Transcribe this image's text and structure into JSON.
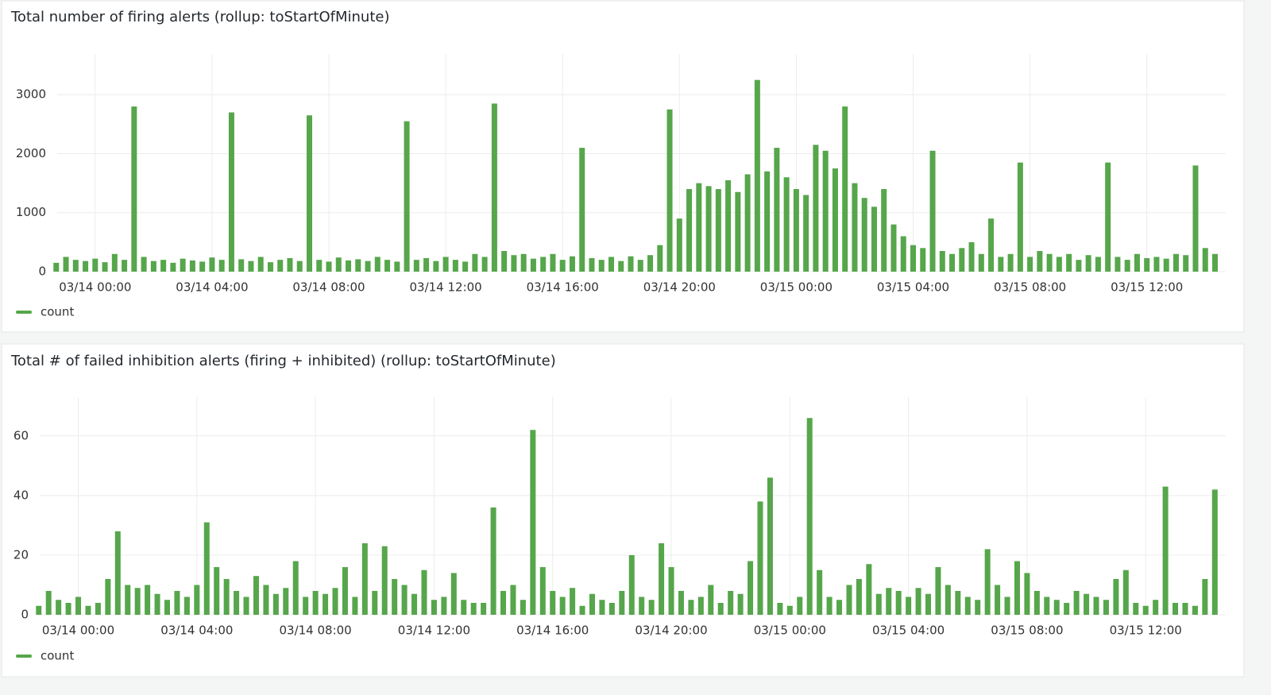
{
  "chart_data": [
    {
      "type": "bar",
      "title": "Total number of firing alerts (rollup: toStartOfMinute)",
      "x": [
        "03/13 22:40",
        "03/13 23:00",
        "03/13 23:20",
        "03/13 23:40",
        "03/14 00:00",
        "03/14 00:20",
        "03/14 00:40",
        "03/14 01:00",
        "03/14 01:20",
        "03/14 01:40",
        "03/14 02:00",
        "03/14 02:20",
        "03/14 02:40",
        "03/14 03:00",
        "03/14 03:20",
        "03/14 03:40",
        "03/14 04:00",
        "03/14 04:20",
        "03/14 04:40",
        "03/14 05:00",
        "03/14 05:20",
        "03/14 05:40",
        "03/14 06:00",
        "03/14 06:20",
        "03/14 06:40",
        "03/14 07:00",
        "03/14 07:20",
        "03/14 07:40",
        "03/14 08:00",
        "03/14 08:20",
        "03/14 08:40",
        "03/14 09:00",
        "03/14 09:20",
        "03/14 09:40",
        "03/14 10:00",
        "03/14 10:20",
        "03/14 10:40",
        "03/14 11:00",
        "03/14 11:20",
        "03/14 11:40",
        "03/14 12:00",
        "03/14 12:20",
        "03/14 12:40",
        "03/14 13:00",
        "03/14 13:20",
        "03/14 13:40",
        "03/14 14:00",
        "03/14 14:20",
        "03/14 14:40",
        "03/14 15:00",
        "03/14 15:20",
        "03/14 15:40",
        "03/14 16:00",
        "03/14 16:20",
        "03/14 16:40",
        "03/14 17:00",
        "03/14 17:20",
        "03/14 17:40",
        "03/14 18:00",
        "03/14 18:20",
        "03/14 18:40",
        "03/14 19:00",
        "03/14 19:20",
        "03/14 19:40",
        "03/14 20:00",
        "03/14 20:20",
        "03/14 20:40",
        "03/14 21:00",
        "03/14 21:20",
        "03/14 21:40",
        "03/14 22:00",
        "03/14 22:20",
        "03/14 22:40",
        "03/14 23:00",
        "03/14 23:20",
        "03/14 23:40",
        "03/15 00:00",
        "03/15 00:20",
        "03/15 00:40",
        "03/15 01:00",
        "03/15 01:20",
        "03/15 01:40",
        "03/15 02:00",
        "03/15 02:20",
        "03/15 02:40",
        "03/15 03:00",
        "03/15 03:20",
        "03/15 03:40",
        "03/15 04:00",
        "03/15 04:20",
        "03/15 04:40",
        "03/15 05:00",
        "03/15 05:20",
        "03/15 05:40",
        "03/15 06:00",
        "03/15 06:20",
        "03/15 06:40",
        "03/15 07:00",
        "03/15 07:20",
        "03/15 07:40",
        "03/15 08:00",
        "03/15 08:20",
        "03/15 08:40",
        "03/15 09:00",
        "03/15 09:20",
        "03/15 09:40",
        "03/15 10:00",
        "03/15 10:20",
        "03/15 10:40",
        "03/15 11:00",
        "03/15 11:20",
        "03/15 11:40",
        "03/15 12:00",
        "03/15 12:20",
        "03/15 12:40",
        "03/15 13:00",
        "03/15 13:20",
        "03/15 13:40",
        "03/15 14:00",
        "03/15 14:20"
      ],
      "series": [
        {
          "name": "count",
          "color": "#56a64b",
          "values": [
            150,
            250,
            200,
            180,
            220,
            160,
            300,
            200,
            2800,
            250,
            180,
            200,
            150,
            220,
            190,
            170,
            240,
            200,
            2700,
            210,
            180,
            250,
            160,
            200,
            230,
            180,
            2650,
            200,
            170,
            240,
            190,
            210,
            180,
            250,
            200,
            170,
            2550,
            200,
            230,
            180,
            250,
            200,
            170,
            300,
            250,
            2850,
            350,
            280,
            300,
            220,
            250,
            300,
            200,
            260,
            2100,
            230,
            200,
            250,
            180,
            260,
            200,
            280,
            450,
            2750,
            900,
            1400,
            1500,
            1450,
            1400,
            1550,
            1350,
            1650,
            3250,
            1700,
            2100,
            1600,
            1400,
            1300,
            2150,
            2050,
            1750,
            2800,
            1500,
            1250,
            1100,
            1400,
            800,
            600,
            450,
            400,
            2050,
            350,
            300,
            400,
            500,
            300,
            900,
            250,
            300,
            1850,
            250,
            350,
            300,
            250,
            300,
            200,
            280,
            250,
            1850,
            250,
            200,
            300,
            230,
            250,
            220,
            300,
            280,
            1800,
            400,
            300
          ]
        }
      ],
      "xlim": [
        "03/13 22:42",
        "03/15 14:42"
      ],
      "xticks": [
        "03/14 00:00",
        "03/14 04:00",
        "03/14 08:00",
        "03/14 12:00",
        "03/14 16:00",
        "03/14 20:00",
        "03/15 00:00",
        "03/15 04:00",
        "03/15 08:00",
        "03/15 12:00"
      ],
      "ylim": [
        0,
        3690
      ],
      "yticks": [
        0,
        1000,
        2000,
        3000
      ],
      "grid": true
    },
    {
      "type": "bar",
      "title": "Total # of failed inhibition alerts (firing + inhibited) (rollup: toStartOfMinute)",
      "x": [
        "03/13 22:40",
        "03/13 23:00",
        "03/13 23:20",
        "03/13 23:40",
        "03/14 00:00",
        "03/14 00:20",
        "03/14 00:40",
        "03/14 01:00",
        "03/14 01:20",
        "03/14 01:40",
        "03/14 02:00",
        "03/14 02:20",
        "03/14 02:40",
        "03/14 03:00",
        "03/14 03:20",
        "03/14 03:40",
        "03/14 04:00",
        "03/14 04:20",
        "03/14 04:40",
        "03/14 05:00",
        "03/14 05:20",
        "03/14 05:40",
        "03/14 06:00",
        "03/14 06:20",
        "03/14 06:40",
        "03/14 07:00",
        "03/14 07:20",
        "03/14 07:40",
        "03/14 08:00",
        "03/14 08:20",
        "03/14 08:40",
        "03/14 09:00",
        "03/14 09:20",
        "03/14 09:40",
        "03/14 10:00",
        "03/14 10:20",
        "03/14 10:40",
        "03/14 11:00",
        "03/14 11:20",
        "03/14 11:40",
        "03/14 12:00",
        "03/14 12:20",
        "03/14 12:40",
        "03/14 13:00",
        "03/14 13:20",
        "03/14 13:40",
        "03/14 14:00",
        "03/14 14:20",
        "03/14 14:40",
        "03/14 15:00",
        "03/14 15:20",
        "03/14 15:40",
        "03/14 16:00",
        "03/14 16:20",
        "03/14 16:40",
        "03/14 17:00",
        "03/14 17:20",
        "03/14 17:40",
        "03/14 18:00",
        "03/14 18:20",
        "03/14 18:40",
        "03/14 19:00",
        "03/14 19:20",
        "03/14 19:40",
        "03/14 20:00",
        "03/14 20:20",
        "03/14 20:40",
        "03/14 21:00",
        "03/14 21:20",
        "03/14 21:40",
        "03/14 22:00",
        "03/14 22:20",
        "03/14 22:40",
        "03/14 23:00",
        "03/14 23:20",
        "03/14 23:40",
        "03/15 00:00",
        "03/15 00:20",
        "03/15 00:40",
        "03/15 01:00",
        "03/15 01:20",
        "03/15 01:40",
        "03/15 02:00",
        "03/15 02:20",
        "03/15 02:40",
        "03/15 03:00",
        "03/15 03:20",
        "03/15 03:40",
        "03/15 04:00",
        "03/15 04:20",
        "03/15 04:40",
        "03/15 05:00",
        "03/15 05:20",
        "03/15 05:40",
        "03/15 06:00",
        "03/15 06:20",
        "03/15 06:40",
        "03/15 07:00",
        "03/15 07:20",
        "03/15 07:40",
        "03/15 08:00",
        "03/15 08:20",
        "03/15 08:40",
        "03/15 09:00",
        "03/15 09:20",
        "03/15 09:40",
        "03/15 10:00",
        "03/15 10:20",
        "03/15 10:40",
        "03/15 11:00",
        "03/15 11:20",
        "03/15 11:40",
        "03/15 12:00",
        "03/15 12:20",
        "03/15 12:40",
        "03/15 13:00",
        "03/15 13:20",
        "03/15 13:40",
        "03/15 14:00",
        "03/15 14:20"
      ],
      "series": [
        {
          "name": "count",
          "color": "#56a64b",
          "values": [
            3,
            8,
            5,
            4,
            6,
            3,
            4,
            12,
            28,
            10,
            9,
            10,
            7,
            5,
            8,
            6,
            10,
            31,
            16,
            12,
            8,
            6,
            13,
            10,
            7,
            9,
            18,
            6,
            8,
            7,
            9,
            16,
            6,
            24,
            8,
            23,
            12,
            10,
            7,
            15,
            5,
            6,
            14,
            5,
            4,
            4,
            36,
            8,
            10,
            5,
            62,
            16,
            8,
            6,
            9,
            3,
            7,
            5,
            4,
            8,
            20,
            6,
            5,
            24,
            16,
            8,
            5,
            6,
            10,
            4,
            8,
            7,
            18,
            38,
            46,
            4,
            3,
            6,
            66,
            15,
            6,
            5,
            10,
            12,
            17,
            7,
            9,
            8,
            6,
            9,
            7,
            16,
            10,
            8,
            6,
            5,
            22,
            10,
            6,
            18,
            14,
            8,
            6,
            5,
            4,
            8,
            7,
            6,
            5,
            12,
            15,
            4,
            3,
            5,
            43,
            4,
            4,
            3,
            12,
            42
          ]
        }
      ],
      "xlim": [
        "03/13 22:42",
        "03/15 14:42"
      ],
      "xticks": [
        "03/14 00:00",
        "03/14 04:00",
        "03/14 08:00",
        "03/14 12:00",
        "03/14 16:00",
        "03/14 20:00",
        "03/15 00:00",
        "03/15 04:00",
        "03/15 08:00",
        "03/15 12:00"
      ],
      "ylim": [
        0,
        73
      ],
      "yticks": [
        0,
        20,
        40,
        60
      ],
      "grid": true
    }
  ]
}
